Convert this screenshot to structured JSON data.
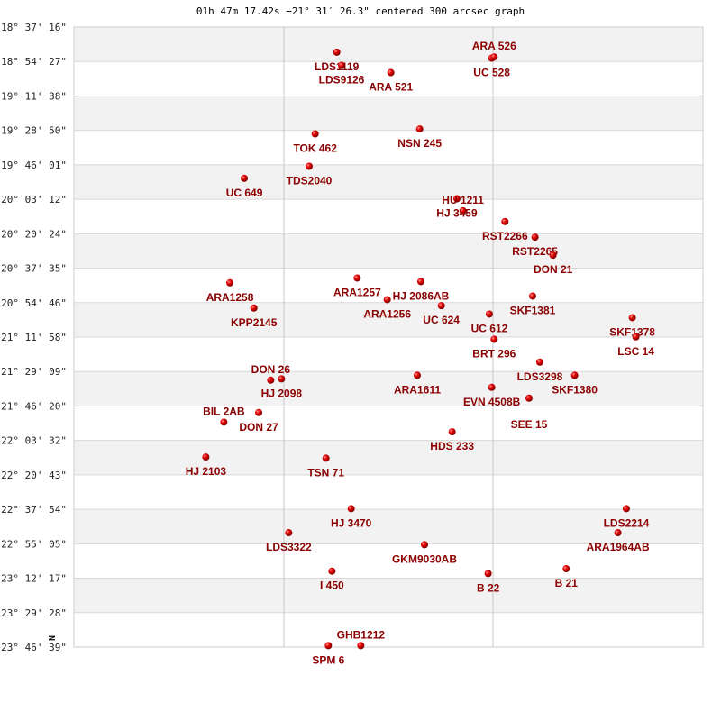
{
  "title": "01h 47m 17.42s −21° 31′ 26.3\" centered 300 arcsec graph",
  "chart_data": {
    "type": "scatter",
    "title": "01h 47m 17.42s −21° 31′ 26.3\" centered 300 arcsec graph",
    "ylabel": "",
    "north_label": "N",
    "marker_color": "#dd0000",
    "label_color": "#8b0000",
    "grid": true,
    "ytick_labels": [
      "-18° 37' 16\"",
      "-18° 54' 27\"",
      "-19° 11' 38\"",
      "-19° 28' 50\"",
      "-19° 46' 01\"",
      "-20° 03' 12\"",
      "-20° 20' 24\"",
      "-20° 37' 35\"",
      "-20° 54' 46\"",
      "-21° 11' 58\"",
      "-21° 29' 09\"",
      "-21° 46' 20\"",
      "-22° 03' 32\"",
      "-22° 20' 43\"",
      "-22° 37' 54\"",
      "-22° 55' 05\"",
      "-23° 12' 17\"",
      "-23° 29' 28\"",
      "-23° 46' 39\""
    ],
    "ylim_deg": [
      -18.621,
      -23.778
    ],
    "points": [
      {
        "name": "LDS1119",
        "x": -0.43,
        "dec": -18.83
      },
      {
        "name": "LDS9126",
        "x": -0.39,
        "dec": -18.94
      },
      {
        "name": "ARA 521",
        "x": 0.02,
        "dec": -19.0
      },
      {
        "name": "UC 528",
        "x": 0.86,
        "dec": -18.88
      },
      {
        "name": "ARA 526",
        "x": 0.88,
        "dec": -18.87
      },
      {
        "name": "TOK 462",
        "x": -0.61,
        "dec": -19.51
      },
      {
        "name": "NSN 245",
        "x": 0.26,
        "dec": -19.47
      },
      {
        "name": "TDS2040",
        "x": -0.66,
        "dec": -19.78
      },
      {
        "name": "UC  649",
        "x": -1.2,
        "dec": -19.88
      },
      {
        "name": "HJ 3459",
        "x": 0.57,
        "dec": -20.05
      },
      {
        "name": "HU 1211",
        "x": 0.62,
        "dec": -20.15
      },
      {
        "name": "RST2266",
        "x": 0.97,
        "dec": -20.24
      },
      {
        "name": "RST2265",
        "x": 1.22,
        "dec": -20.37
      },
      {
        "name": "DON  21",
        "x": 1.37,
        "dec": -20.52
      },
      {
        "name": "ARA1257",
        "x": -0.26,
        "dec": -20.71
      },
      {
        "name": "HJ 2086AB",
        "x": 0.27,
        "dec": -20.74
      },
      {
        "name": "ARA1258",
        "x": -1.32,
        "dec": -20.75
      },
      {
        "name": "SKF1381",
        "x": 1.2,
        "dec": -20.86
      },
      {
        "name": "ARA1256",
        "x": -0.01,
        "dec": -20.89
      },
      {
        "name": "UC  624",
        "x": 0.44,
        "dec": -20.94
      },
      {
        "name": "KPP2145",
        "x": -1.12,
        "dec": -20.96
      },
      {
        "name": "UC  612",
        "x": 0.84,
        "dec": -21.01
      },
      {
        "name": "SKF1378",
        "x": 2.03,
        "dec": -21.04
      },
      {
        "name": "LSC  14",
        "x": 2.06,
        "dec": -21.2
      },
      {
        "name": "BRT 296",
        "x": 0.88,
        "dec": -21.22
      },
      {
        "name": "LDS3298",
        "x": 1.26,
        "dec": -21.41
      },
      {
        "name": "SKF1380",
        "x": 1.55,
        "dec": -21.52
      },
      {
        "name": "ARA1611",
        "x": 0.24,
        "dec": -21.52
      },
      {
        "name": "HJ 2098",
        "x": -0.89,
        "dec": -21.55
      },
      {
        "name": "DON  26",
        "x": -0.98,
        "dec": -21.56
      },
      {
        "name": "EVN 4508B",
        "x": 0.86,
        "dec": -21.62
      },
      {
        "name": "SEE  15",
        "x": 1.17,
        "dec": -21.71
      },
      {
        "name": "DON  27",
        "x": -1.08,
        "dec": -21.83
      },
      {
        "name": "BIL   2AB",
        "x": -1.37,
        "dec": -21.91
      },
      {
        "name": "HDS 233",
        "x": 0.53,
        "dec": -21.99
      },
      {
        "name": "HJ 2103",
        "x": -1.52,
        "dec": -22.2
      },
      {
        "name": "TSN  71",
        "x": -0.52,
        "dec": -22.21
      },
      {
        "name": "HJ 3470",
        "x": -0.31,
        "dec": -22.63
      },
      {
        "name": "LDS2214",
        "x": 1.98,
        "dec": -22.63
      },
      {
        "name": "LDS3322",
        "x": -0.83,
        "dec": -22.83
      },
      {
        "name": "ARA1964AB",
        "x": 1.91,
        "dec": -22.83
      },
      {
        "name": "GKM9030AB",
        "x": 0.3,
        "dec": -22.93
      },
      {
        "name": "I    450",
        "x": -0.47,
        "dec": -23.15
      },
      {
        "name": "B    22",
        "x": 0.83,
        "dec": -23.17
      },
      {
        "name": "B    21",
        "x": 1.48,
        "dec": -23.13
      },
      {
        "name": "SPM   6",
        "x": -0.5,
        "dec": -23.77
      },
      {
        "name": "GHB1212",
        "x": -0.23,
        "dec": -23.77
      }
    ]
  }
}
